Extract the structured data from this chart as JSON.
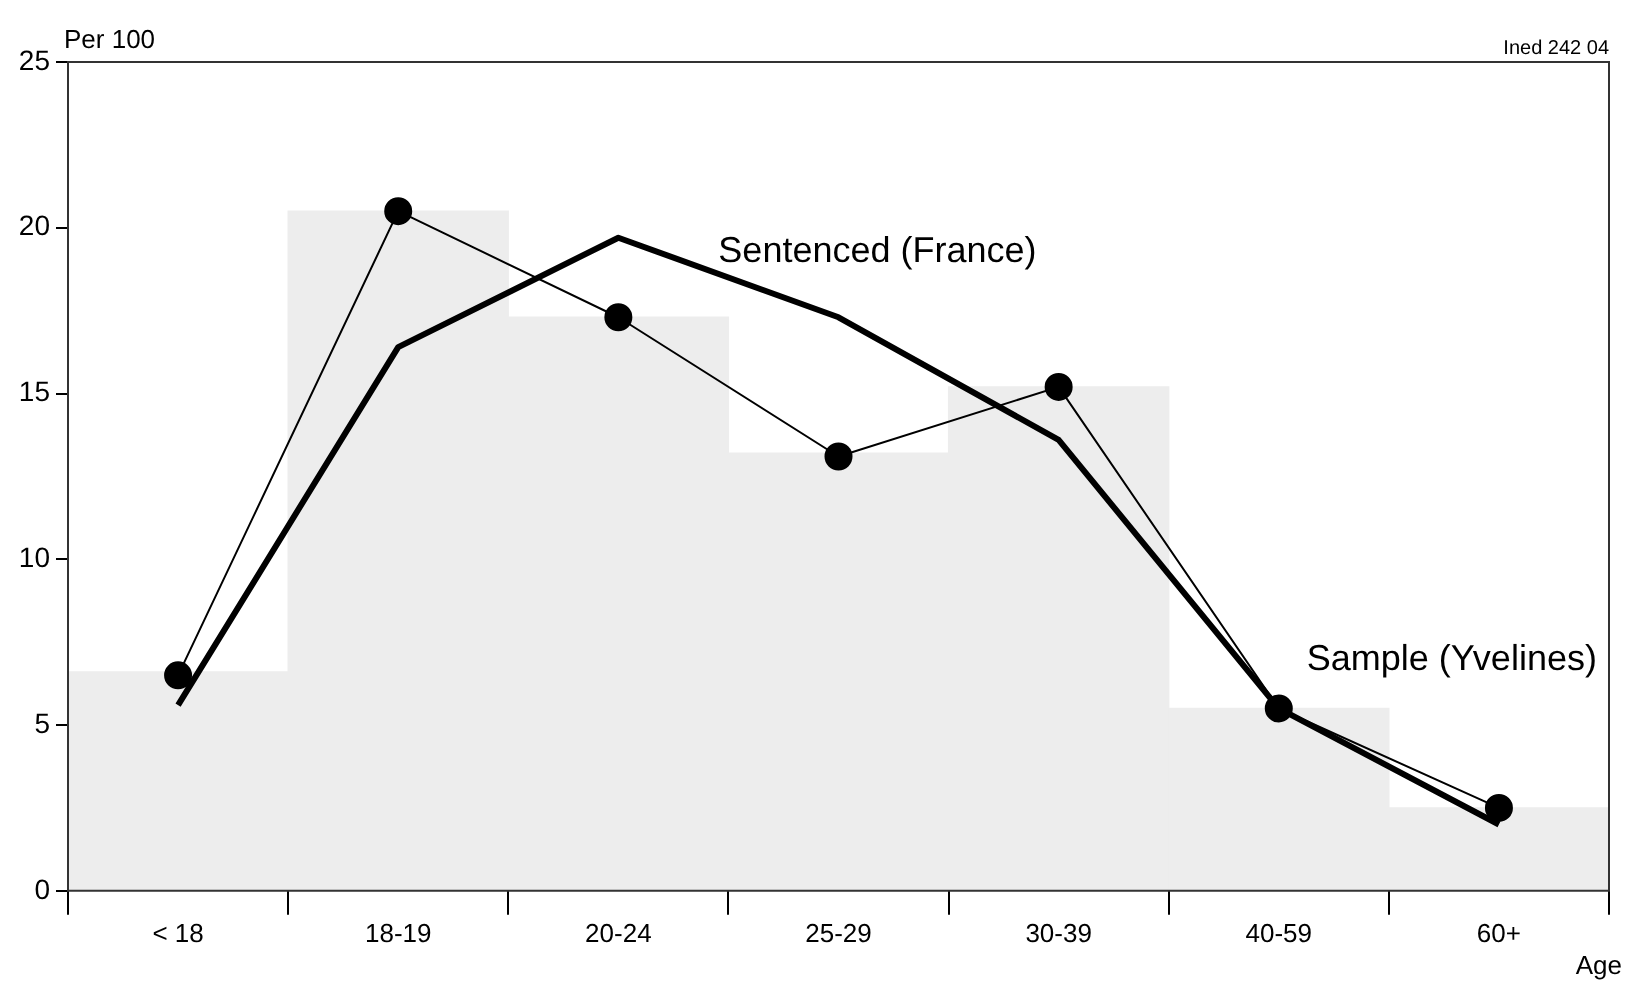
{
  "chart_data": {
    "type": "line",
    "xlabel": "Age",
    "ylabel": "Per 100",
    "annotations": [
      "Ined 242 04"
    ],
    "categories": [
      "< 18",
      "18-19",
      "20-24",
      "25-29",
      "30-39",
      "40-59",
      "60+"
    ],
    "ylim": [
      0,
      25
    ],
    "yticks": [
      0,
      5,
      10,
      15,
      20,
      25
    ],
    "grid": false,
    "legend": false,
    "series": [
      {
        "type": "bar",
        "color": "#ededed",
        "values": [
          6.6,
          20.5,
          17.3,
          13.2,
          15.2,
          5.5,
          2.5
        ]
      },
      {
        "name": "Sentenced (France)",
        "color": "#000000",
        "marker": "none",
        "values": [
          5.6,
          16.4,
          19.7,
          17.3,
          13.6,
          5.5,
          2.0
        ]
      },
      {
        "name": "Sample (Yvelines)",
        "color": "#000000",
        "marker": "circle",
        "values": [
          6.5,
          20.5,
          17.3,
          13.1,
          15.2,
          5.5,
          2.5
        ]
      }
    ]
  }
}
